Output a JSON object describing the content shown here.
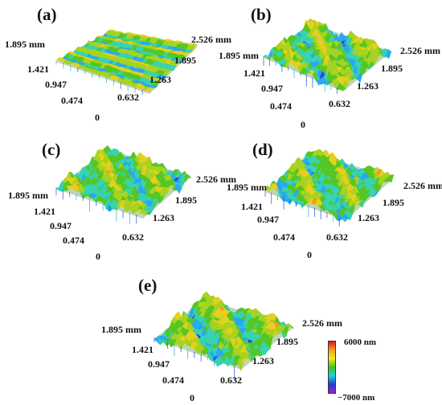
{
  "panels": [
    {
      "label": "(a)",
      "y_max": "1.895 mm",
      "x_max": "2.526 mm",
      "y_ticks": [
        "1.421",
        "0.947",
        "0.474"
      ],
      "x_ticks": [
        "1.895",
        "1.263",
        "0.632"
      ],
      "origin": "0"
    },
    {
      "label": "(b)",
      "y_max": "1.895 mm",
      "x_max": "2.526 mm",
      "y_ticks": [
        "1.421",
        "0.947",
        "0.474"
      ],
      "x_ticks": [
        "1.895",
        "1.263",
        "0.632"
      ],
      "origin": "0"
    },
    {
      "label": "(c)",
      "y_max": "1.895 mm",
      "x_max": "2.526 mm",
      "y_ticks": [
        "1.421",
        "0.947",
        "0.474"
      ],
      "x_ticks": [
        "1.895",
        "1.263",
        "0.632"
      ],
      "origin": "0"
    },
    {
      "label": "(d)",
      "y_max": "1.895 mm",
      "x_max": "2.526 mm",
      "y_ticks": [
        "1.421",
        "0.947",
        "0.474"
      ],
      "x_ticks": [
        "1.895",
        "1.263",
        "0.632"
      ],
      "origin": "0"
    },
    {
      "label": "(e)",
      "y_max": "1.895 mm",
      "x_max": "2.526 mm",
      "y_ticks": [
        "1.421",
        "0.947",
        "0.474"
      ],
      "x_ticks": [
        "1.895",
        "1.263",
        "0.632"
      ],
      "origin": "0"
    }
  ],
  "colorbar": {
    "max_label": "6000 nm",
    "min_label": "−7000 nm",
    "colors": [
      "#e8141c",
      "#f7a11a",
      "#f2ea1a",
      "#43c41d",
      "#1fd1e0",
      "#2637d6",
      "#8a2ad0"
    ]
  },
  "surface_colors": [
    "#7d3ad8",
    "#2b48e0",
    "#2aa8f0",
    "#37d3b0",
    "#56c623",
    "#a7d320",
    "#e5d01e",
    "#f39b1c",
    "#e5281c"
  ]
}
